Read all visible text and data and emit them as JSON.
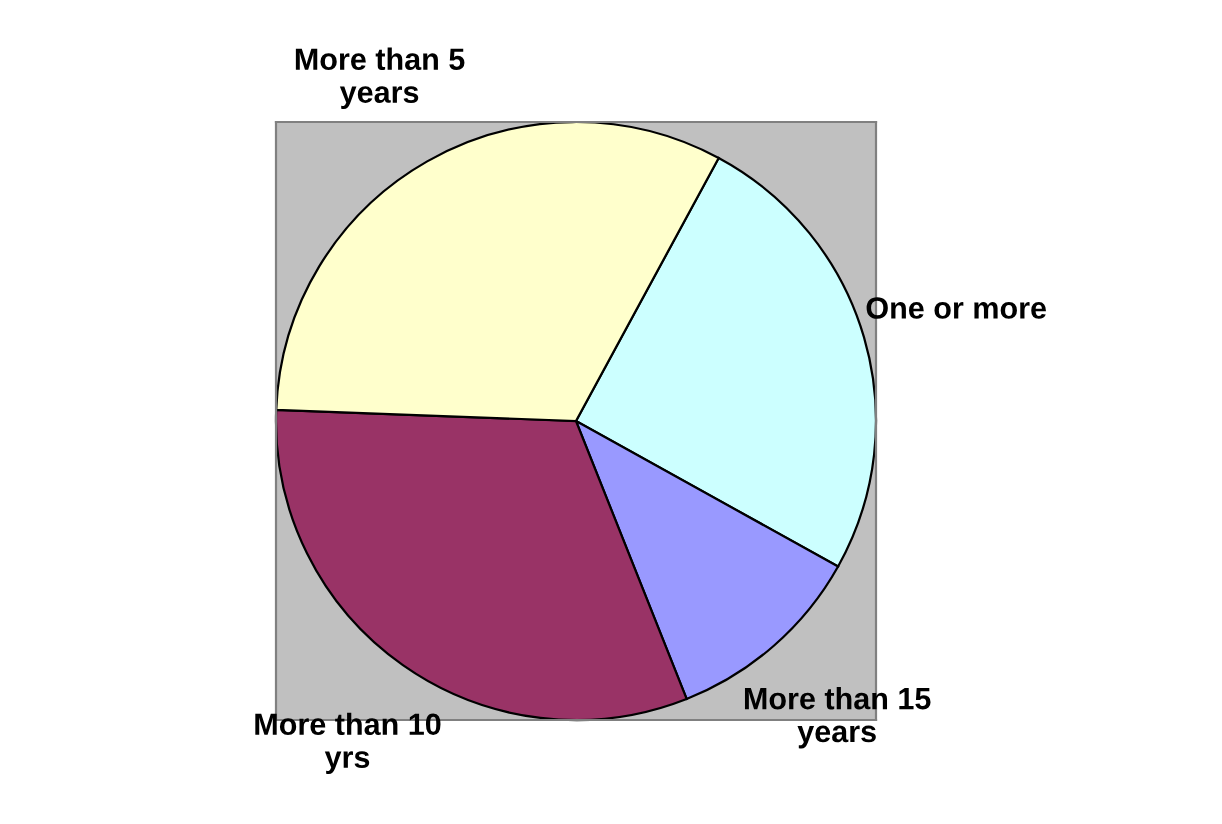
{
  "chart_data": {
    "type": "pie",
    "categories": [
      "One or more",
      "More than 15\nyears",
      "More than 10\nyrs",
      "More than 5\nyears"
    ],
    "values": [
      25.2,
      10.9,
      31.6,
      32.3
    ],
    "colors": [
      "#ccffff",
      "#9999ff",
      "#993366",
      "#ffffcc"
    ],
    "legend": false
  }
}
